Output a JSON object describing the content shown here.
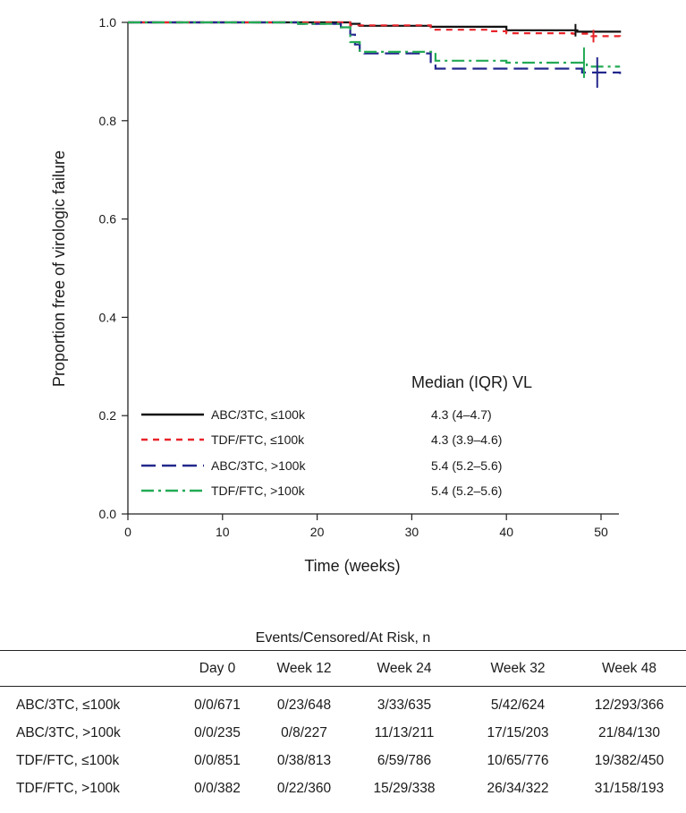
{
  "chart_data": {
    "type": "line",
    "step": true,
    "xlabel": "Time (weeks)",
    "ylabel": "Proportion free of virologic failure",
    "xlim": [
      0,
      52
    ],
    "ylim": [
      0,
      1
    ],
    "xticks": [
      0,
      10,
      20,
      30,
      40,
      50
    ],
    "yticks": [
      0.0,
      0.2,
      0.4,
      0.6,
      0.8,
      1.0
    ],
    "ytick_labels": [
      "0.0",
      "0.2",
      "0.4",
      "0.6",
      "0.8",
      "1.0"
    ],
    "grid": false,
    "legend": {
      "placement": "bottom-left",
      "stat_title": "Median (IQR) VL"
    },
    "series": [
      {
        "name": "ABC/3TC, ≤100k",
        "stat": "4.3 (4–4.7)",
        "color": "#111111",
        "dash": "solid",
        "x": [
          0,
          23.5,
          24.5,
          32,
          40,
          47.5,
          52
        ],
        "y": [
          1.0,
          0.997,
          0.993,
          0.991,
          0.984,
          0.981,
          0.979
        ],
        "censor": [
          47.3
        ]
      },
      {
        "name": "TDF/FTC, ≤100k",
        "stat": "4.3 (3.9–4.6)",
        "color": "#e8242a",
        "dash": "short",
        "x": [
          0,
          23.5,
          32,
          38,
          40,
          47,
          49,
          52
        ],
        "y": [
          1.0,
          0.994,
          0.985,
          0.982,
          0.978,
          0.977,
          0.972,
          0.971
        ],
        "censor": [
          49.2
        ]
      },
      {
        "name": "ABC/3TC, >100k",
        "stat": "5.4 (5.2–5.6)",
        "color": "#23288c",
        "dash": "long",
        "x": [
          0,
          18,
          22.5,
          23.5,
          24,
          24.5,
          25,
          32,
          32.5,
          48,
          52
        ],
        "y": [
          1.0,
          0.997,
          0.99,
          0.975,
          0.955,
          0.94,
          0.937,
          0.915,
          0.906,
          0.898,
          0.895
        ],
        "censor": [
          49.6
        ]
      },
      {
        "name": "TDF/FTC, >100k",
        "stat": "5.4 (5.2–5.6)",
        "color": "#22aa55",
        "dash": "dashdot",
        "x": [
          0,
          18,
          22.5,
          23.5,
          24.5,
          32.5,
          40,
          48.5,
          52
        ],
        "y": [
          1.0,
          0.997,
          0.99,
          0.96,
          0.94,
          0.922,
          0.918,
          0.91,
          0.91
        ],
        "censor": [
          48.2
        ]
      }
    ]
  },
  "risk_table": {
    "title": "Events/Censored/At Risk, n",
    "columns": [
      "",
      "Day 0",
      "Week 12",
      "Week 24",
      "Week 32",
      "Week 48"
    ],
    "rows": [
      {
        "label": "ABC/3TC, ≤100k",
        "values": [
          "0/0/671",
          "0/23/648",
          "3/33/635",
          "5/42/624",
          "12/293/366"
        ]
      },
      {
        "label": "ABC/3TC, >100k",
        "values": [
          "0/0/235",
          "0/8/227",
          "11/13/211",
          "17/15/203",
          "21/84/130"
        ]
      },
      {
        "label": "TDF/FTC, ≤100k",
        "values": [
          "0/0/851",
          "0/38/813",
          "6/59/786",
          "10/65/776",
          "19/382/450"
        ]
      },
      {
        "label": "TDF/FTC, >100k",
        "values": [
          "0/0/382",
          "0/22/360",
          "15/29/338",
          "26/34/322",
          "31/158/193"
        ]
      }
    ]
  }
}
